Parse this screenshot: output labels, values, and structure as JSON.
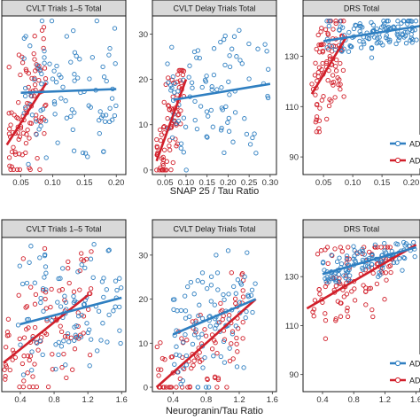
{
  "chart_data": {
    "type": "scatter",
    "colors": {
      "red": "#d11f2a",
      "blue": "#2f7fc1",
      "strip": "#d9d9d9"
    },
    "rows": [
      {
        "xlabel": "SNAP 25 / Tau Ratio"
      },
      {
        "xlabel": "Neurogranin/Tau Ratio"
      }
    ],
    "legend": {
      "entries": [
        "AD",
        "AD"
      ],
      "colors": [
        "#2f7fc1",
        "#d11f2a"
      ],
      "placement": "right"
    },
    "panels": [
      {
        "title": "CVLT Trials 1–5 Total",
        "xlim": [
          0.02,
          0.215
        ],
        "ylim": [
          18,
          82
        ],
        "xticks": [
          0.05,
          0.1,
          0.15,
          0.2
        ],
        "xtick_labels": [
          "0.05",
          "0.10",
          "0.15",
          "0.20"
        ],
        "yticks": [],
        "ytick_labels": [],
        "series": [
          {
            "name": "red",
            "seed": 11,
            "n": 95,
            "xrange": [
              0.03,
              0.09
            ],
            "yrange": [
              20,
              80
            ]
          },
          {
            "name": "blue",
            "seed": 12,
            "n": 95,
            "xrange": [
              0.055,
              0.2
            ],
            "yrange": [
              20,
              80
            ]
          }
        ],
        "lines": [
          {
            "name": "red",
            "x": [
              0.028,
              0.09
            ],
            "y": [
              30,
              55
            ]
          },
          {
            "name": "blue",
            "x": [
              0.05,
              0.2
            ],
            "y": [
              51,
              52.5
            ]
          }
        ]
      },
      {
        "title": "CVLT Delay Trials Total",
        "xlim": [
          0.02,
          0.315
        ],
        "ylim": [
          -1,
          34
        ],
        "xticks": [
          0.05,
          0.1,
          0.15,
          0.2,
          0.25,
          0.3
        ],
        "xtick_labels": [
          "0.05",
          "0.10",
          "0.15",
          "0.20",
          "0.25",
          "0.30"
        ],
        "yticks": [
          0,
          10,
          20,
          30
        ],
        "ytick_labels": [
          "0",
          "10",
          "20",
          "30"
        ],
        "series": [
          {
            "name": "red",
            "seed": 21,
            "n": 85,
            "xrange": [
              0.03,
              0.095
            ],
            "yrange": [
              0,
              22
            ]
          },
          {
            "name": "blue",
            "seed": 22,
            "n": 95,
            "xrange": [
              0.055,
              0.3
            ],
            "yrange": [
              0,
              31
            ]
          }
        ],
        "lines": [
          {
            "name": "red",
            "x": [
              0.03,
              0.1
            ],
            "y": [
              2,
              20
            ]
          },
          {
            "name": "blue",
            "x": [
              0.07,
              0.3
            ],
            "y": [
              15.5,
              19
            ]
          }
        ]
      },
      {
        "title": "DRS Total",
        "xlim": [
          0.015,
          0.215
        ],
        "ylim": [
          83,
          146
        ],
        "xticks": [
          0.05,
          0.1,
          0.15,
          0.2
        ],
        "xtick_labels": [
          "0.05",
          "0.10",
          "0.15",
          "0.20"
        ],
        "yticks": [
          90,
          110,
          130
        ],
        "ytick_labels": [
          "90",
          "110",
          "130"
        ],
        "series": [
          {
            "name": "red",
            "seed": 31,
            "n": 95,
            "xrange": [
              0.03,
              0.085
            ],
            "yrange": [
              100,
              144
            ]
          },
          {
            "name": "blue",
            "seed": 32,
            "n": 120,
            "xrange": [
              0.055,
              0.21
            ],
            "yrange": [
              128,
              144
            ]
          }
        ],
        "lines": [
          {
            "name": "red",
            "x": [
              0.03,
              0.09
            ],
            "y": [
              115,
              138
            ]
          },
          {
            "name": "blue",
            "x": [
              0.05,
              0.215
            ],
            "y": [
              136,
              142
            ]
          }
        ]
      },
      {
        "title": "CVLT Trials 1–5 Total",
        "xlim": [
          0.18,
          1.65
        ],
        "ylim": [
          18,
          82
        ],
        "xticks": [
          0.4,
          0.8,
          1.2,
          1.6
        ],
        "xtick_labels": [
          "0.4",
          "0.8",
          "1.2",
          "1.6"
        ],
        "yticks": [],
        "ytick_labels": [],
        "series": [
          {
            "name": "red",
            "seed": 41,
            "n": 100,
            "xrange": [
              0.2,
              1.25
            ],
            "yrange": [
              20,
              80
            ]
          },
          {
            "name": "blue",
            "seed": 42,
            "n": 100,
            "xrange": [
              0.35,
              1.6
            ],
            "yrange": [
              25,
              80
            ]
          }
        ],
        "lines": [
          {
            "name": "red",
            "x": [
              0.2,
              1.2
            ],
            "y": [
              30,
              58
            ]
          },
          {
            "name": "blue",
            "x": [
              0.4,
              1.6
            ],
            "y": [
              46,
              57
            ]
          }
        ]
      },
      {
        "title": "CVLT Delay Trials Total",
        "xlim": [
          0.15,
          1.65
        ],
        "ylim": [
          -1,
          34
        ],
        "xticks": [
          0.4,
          0.8,
          1.2,
          1.6
        ],
        "xtick_labels": [
          "0.4",
          "0.8",
          "1.2",
          "1.6"
        ],
        "yticks": [
          0,
          10,
          20,
          30
        ],
        "ytick_labels": [
          "0",
          "10",
          "20",
          "30"
        ],
        "series": [
          {
            "name": "red",
            "seed": 51,
            "n": 95,
            "xrange": [
              0.2,
              1.25
            ],
            "yrange": [
              0,
              26
            ]
          },
          {
            "name": "blue",
            "seed": 52,
            "n": 100,
            "xrange": [
              0.4,
              1.4
            ],
            "yrange": [
              0,
              31
            ]
          }
        ],
        "lines": [
          {
            "name": "red",
            "x": [
              0.2,
              1.4
            ],
            "y": [
              0,
              20
            ]
          },
          {
            "name": "blue",
            "x": [
              0.4,
              1.4
            ],
            "y": [
              12,
              20
            ]
          }
        ]
      },
      {
        "title": "DRS Total",
        "xlim": [
          0.15,
          1.65
        ],
        "ylim": [
          83,
          146
        ],
        "xticks": [
          0.4,
          0.8,
          1.2,
          1.6
        ],
        "xtick_labels": [
          "0.4",
          "0.8",
          "1.2",
          "1.6"
        ],
        "yticks": [
          90,
          110,
          130
        ],
        "ytick_labels": [
          "90",
          "110",
          "130"
        ],
        "series": [
          {
            "name": "red",
            "seed": 61,
            "n": 100,
            "xrange": [
              0.25,
              1.3
            ],
            "yrange": [
              100,
              142
            ]
          },
          {
            "name": "blue",
            "seed": 62,
            "n": 110,
            "xrange": [
              0.4,
              1.6
            ],
            "yrange": [
              128,
              144
            ]
          }
        ],
        "lines": [
          {
            "name": "red",
            "x": [
              0.2,
              1.6
            ],
            "y": [
              117,
              143
            ]
          },
          {
            "name": "blue",
            "x": [
              0.4,
              1.6
            ],
            "y": [
              131,
              142
            ]
          }
        ]
      }
    ]
  }
}
